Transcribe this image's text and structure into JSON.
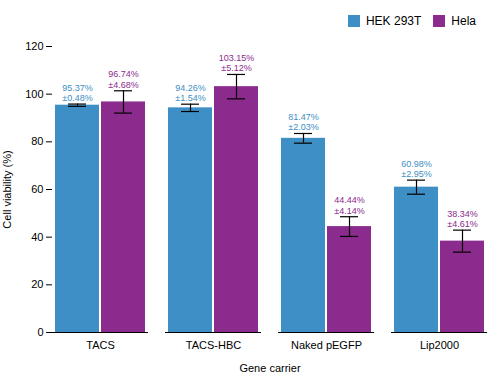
{
  "chart_data": {
    "type": "bar",
    "categories": [
      "TACS",
      "TACS-HBC",
      "Naked pEGFP",
      "Lip2000"
    ],
    "series": [
      {
        "name": "HEK 293T",
        "color": "#3D8FC5",
        "values": [
          95.37,
          94.26,
          81.47,
          60.98
        ],
        "errors": [
          0.48,
          1.54,
          2.03,
          2.95
        ],
        "value_labels": [
          "95.37%",
          "94.26%",
          "81.47%",
          "60.98%"
        ],
        "error_labels": [
          "±0.48%",
          "±1.54%",
          "±2.03%",
          "±2.95%"
        ]
      },
      {
        "name": "Hela",
        "color": "#8B2B8E",
        "values": [
          96.74,
          103.15,
          44.44,
          38.34
        ],
        "errors": [
          4.68,
          5.12,
          4.14,
          4.61
        ],
        "value_labels": [
          "96.74%",
          "103.15%",
          "44.44%",
          "38.34%"
        ],
        "error_labels": [
          "±4.68%",
          "±5.12%",
          "±4.14%",
          "±4.61%"
        ]
      }
    ],
    "xlabel": "Gene carrier",
    "ylabel": "Cell viability (%)",
    "ylim": [
      0,
      120
    ],
    "yticks": [
      0,
      20,
      40,
      60,
      80,
      100,
      120
    ],
    "data_labels": true,
    "legend": "upper right",
    "grid": false
  }
}
